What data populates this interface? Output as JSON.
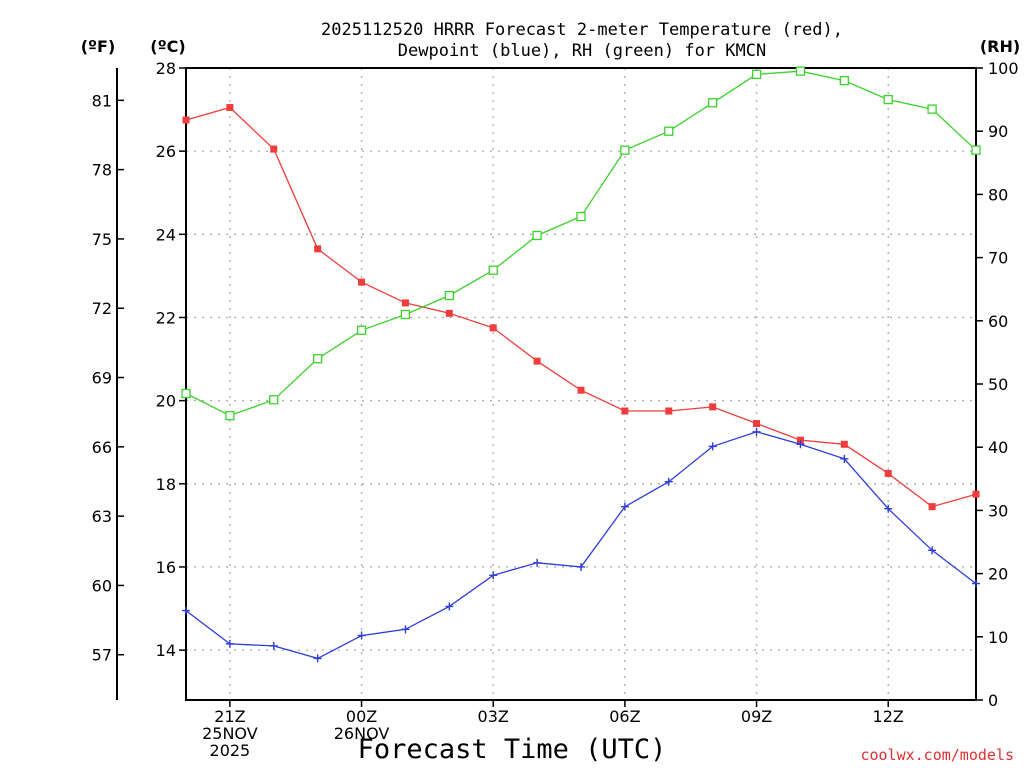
{
  "chart_data": {
    "type": "line",
    "title_lines": [
      "2025112520 HRRR Forecast 2-meter Temperature (red),",
      "Dewpoint (blue), RH (green) for KMCN"
    ],
    "units": {
      "fahrenheit": "(ºF)",
      "celsius": "(ºC)",
      "rh": "(RH)"
    },
    "xlabel": "Forecast Time (UTC)",
    "credit": "coolwx.com/models",
    "x_hours": [
      20,
      21,
      22,
      23,
      24,
      25,
      26,
      27,
      28,
      29,
      30,
      31,
      32,
      33,
      34,
      35,
      36,
      37,
      38
    ],
    "xlim": [
      20,
      38
    ],
    "x_ticks": [
      {
        "hour": 21,
        "lines": [
          "21Z",
          "25NOV",
          "2025"
        ]
      },
      {
        "hour": 24,
        "lines": [
          "00Z",
          "26NOV"
        ]
      },
      {
        "hour": 27,
        "lines": [
          "03Z"
        ]
      },
      {
        "hour": 30,
        "lines": [
          "06Z"
        ]
      },
      {
        "hour": 33,
        "lines": [
          "09Z"
        ]
      },
      {
        "hour": 36,
        "lines": [
          "12Z"
        ]
      }
    ],
    "celsius_axis": {
      "ylim": [
        12.8,
        28
      ],
      "ticks": [
        14,
        16,
        18,
        20,
        22,
        24,
        26,
        28
      ]
    },
    "fahrenheit_axis": {
      "ticks": [
        57,
        60,
        63,
        66,
        69,
        72,
        75,
        78,
        81
      ]
    },
    "rh_axis": {
      "ylim": [
        0,
        100
      ],
      "ticks": [
        0,
        10,
        20,
        30,
        40,
        50,
        60,
        70,
        80,
        90,
        100
      ]
    },
    "grid": true,
    "series": [
      {
        "name": "Temperature",
        "color": "#f03c3c",
        "marker": "filled-square",
        "axis": "celsius",
        "values": [
          26.75,
          27.05,
          26.05,
          23.65,
          22.85,
          22.35,
          22.1,
          21.75,
          20.95,
          20.25,
          19.75,
          19.75,
          19.85,
          19.45,
          19.05,
          18.95,
          18.25,
          17.45,
          17.75
        ]
      },
      {
        "name": "Dewpoint",
        "color": "#2d3cdc",
        "marker": "plus",
        "axis": "celsius",
        "values": [
          14.95,
          14.15,
          14.1,
          13.8,
          14.35,
          14.5,
          15.05,
          15.8,
          16.1,
          16.0,
          17.45,
          18.05,
          18.9,
          19.25,
          18.95,
          18.6,
          17.4,
          16.4,
          15.6
        ]
      },
      {
        "name": "RH",
        "color": "#3cd22d",
        "marker": "open-square",
        "axis": "rh",
        "values": [
          48.5,
          45,
          47.5,
          54,
          58.5,
          61,
          64,
          68,
          73.5,
          76.5,
          87,
          90,
          94.5,
          99,
          99.5,
          98,
          95,
          93.5,
          87
        ]
      }
    ]
  }
}
